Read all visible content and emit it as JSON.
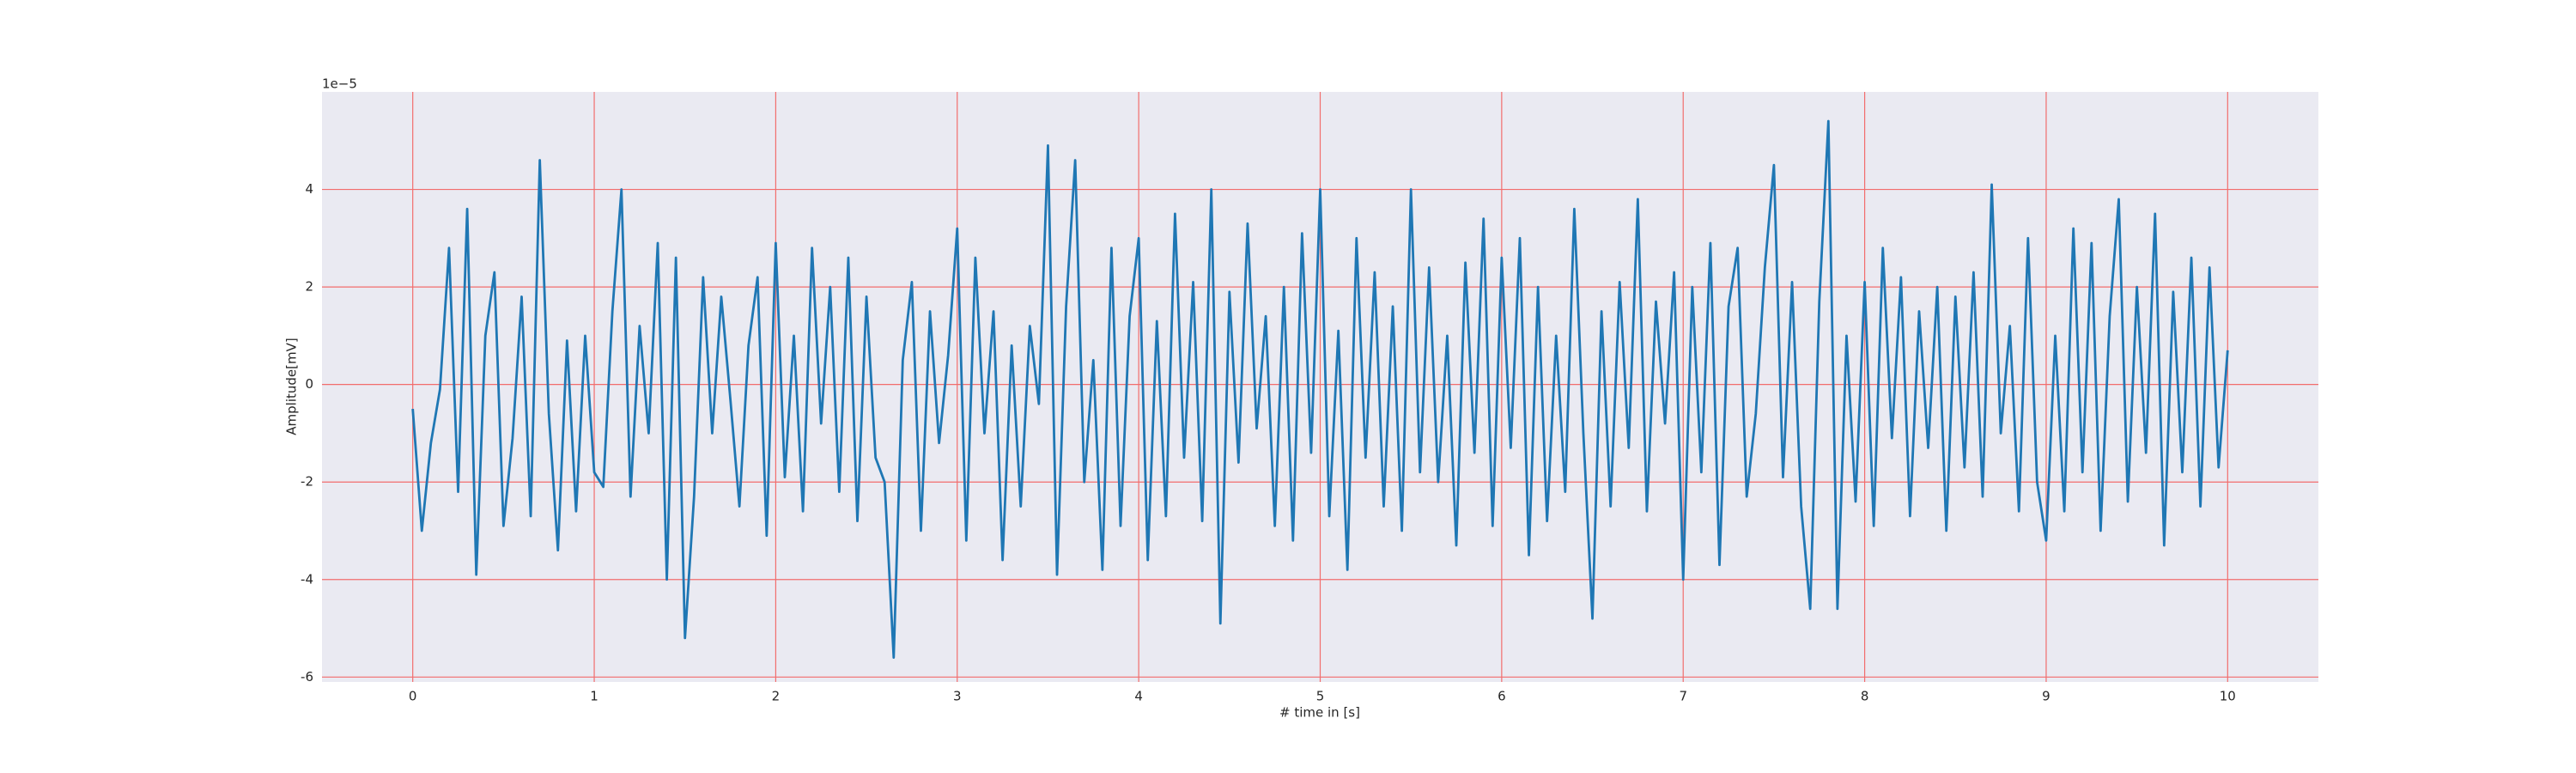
{
  "chart_data": {
    "type": "line",
    "xlabel": "# time in [s]",
    "ylabel": "Amplitude[mV]",
    "offset_text": "1e−5",
    "x": [
      0,
      0.05,
      0.1,
      0.15,
      0.2,
      0.25,
      0.3,
      0.35,
      0.4,
      0.45,
      0.5,
      0.55,
      0.6,
      0.65,
      0.7,
      0.75,
      0.8,
      0.85,
      0.9,
      0.95,
      1,
      1.05,
      1.1,
      1.15,
      1.2,
      1.25,
      1.3,
      1.35,
      1.4,
      1.45,
      1.5,
      1.55,
      1.6,
      1.65,
      1.7,
      1.75,
      1.8,
      1.85,
      1.9,
      1.95,
      2,
      2.05,
      2.1,
      2.15,
      2.2,
      2.25,
      2.3,
      2.35,
      2.4,
      2.45,
      2.5,
      2.55,
      2.6,
      2.65,
      2.7,
      2.75,
      2.8,
      2.85,
      2.9,
      2.95,
      3,
      3.05,
      3.1,
      3.15,
      3.2,
      3.25,
      3.3,
      3.35,
      3.4,
      3.45,
      3.5,
      3.55,
      3.6,
      3.65,
      3.7,
      3.75,
      3.8,
      3.85,
      3.9,
      3.95,
      4,
      4.05,
      4.1,
      4.15,
      4.2,
      4.25,
      4.3,
      4.35,
      4.4,
      4.45,
      4.5,
      4.55,
      4.6,
      4.65,
      4.7,
      4.75,
      4.8,
      4.85,
      4.9,
      4.95,
      5,
      5.05,
      5.1,
      5.15,
      5.2,
      5.25,
      5.3,
      5.35,
      5.4,
      5.45,
      5.5,
      5.55,
      5.6,
      5.65,
      5.7,
      5.75,
      5.8,
      5.85,
      5.9,
      5.95,
      6,
      6.05,
      6.1,
      6.15,
      6.2,
      6.25,
      6.3,
      6.35,
      6.4,
      6.45,
      6.5,
      6.55,
      6.6,
      6.65,
      6.7,
      6.75,
      6.8,
      6.85,
      6.9,
      6.95,
      7,
      7.05,
      7.1,
      7.15,
      7.2,
      7.25,
      7.3,
      7.35,
      7.4,
      7.45,
      7.5,
      7.55,
      7.6,
      7.65,
      7.7,
      7.75,
      7.8,
      7.85,
      7.9,
      7.95,
      8,
      8.05,
      8.1,
      8.15,
      8.2,
      8.25,
      8.3,
      8.35,
      8.4,
      8.45,
      8.5,
      8.55,
      8.6,
      8.65,
      8.7,
      8.75,
      8.8,
      8.85,
      8.9,
      8.95,
      9,
      9.05,
      9.1,
      9.15,
      9.2,
      9.25,
      9.3,
      9.35,
      9.4,
      9.45,
      9.5,
      9.55,
      9.6,
      9.65,
      9.7,
      9.75,
      9.8,
      9.85,
      9.9,
      9.95,
      10
    ],
    "values": [
      -0.5,
      -3.0,
      -1.2,
      -0.1,
      2.8,
      -2.2,
      3.6,
      -3.9,
      1.0,
      2.3,
      -2.9,
      -1.1,
      1.8,
      -2.7,
      4.6,
      -0.6,
      -3.4,
      0.9,
      -2.6,
      1.0,
      -1.8,
      -2.1,
      1.5,
      4.0,
      -2.3,
      1.2,
      -1.0,
      2.9,
      -4.0,
      2.6,
      -5.2,
      -2.3,
      2.2,
      -1.0,
      1.8,
      -0.3,
      -2.5,
      0.8,
      2.2,
      -3.1,
      2.9,
      -1.9,
      1.0,
      -2.6,
      2.8,
      -0.8,
      2.0,
      -2.2,
      2.6,
      -2.8,
      1.8,
      -1.5,
      -2.0,
      -5.6,
      0.5,
      2.1,
      -3.0,
      1.5,
      -1.2,
      0.6,
      3.2,
      -3.2,
      2.6,
      -1.0,
      1.5,
      -3.6,
      0.8,
      -2.5,
      1.2,
      -0.4,
      4.9,
      -3.9,
      1.6,
      4.6,
      -2.0,
      0.5,
      -3.8,
      2.8,
      -2.9,
      1.4,
      3.0,
      -3.6,
      1.3,
      -2.7,
      3.5,
      -1.5,
      2.1,
      -2.8,
      4.0,
      -4.9,
      1.9,
      -1.6,
      3.3,
      -0.9,
      1.4,
      -2.9,
      2.0,
      -3.2,
      3.1,
      -1.4,
      4.0,
      -2.7,
      1.1,
      -3.8,
      3.0,
      -1.5,
      2.3,
      -2.5,
      1.6,
      -3.0,
      4.0,
      -1.8,
      2.4,
      -2.0,
      1.0,
      -3.3,
      2.5,
      -1.4,
      3.4,
      -2.9,
      2.6,
      -1.3,
      3.0,
      -3.5,
      2.0,
      -2.8,
      1.0,
      -2.2,
      3.6,
      -1.0,
      -4.8,
      1.5,
      -2.5,
      2.1,
      -1.3,
      3.8,
      -2.6,
      1.7,
      -0.8,
      2.3,
      -4.0,
      2.0,
      -1.8,
      2.9,
      -3.7,
      1.6,
      2.8,
      -2.3,
      -0.6,
      2.4,
      4.5,
      -1.9,
      2.1,
      -2.5,
      -4.6,
      1.7,
      5.4,
      -4.6,
      1.0,
      -2.4,
      2.1,
      -2.9,
      2.8,
      -1.1,
      2.2,
      -2.7,
      1.5,
      -1.3,
      2.0,
      -3.0,
      1.8,
      -1.7,
      2.3,
      -2.3,
      4.1,
      -1.0,
      1.2,
      -2.6,
      3.0,
      -2.0,
      -3.2,
      1.0,
      -2.6,
      3.2,
      -1.8,
      2.9,
      -3.0,
      1.4,
      3.8,
      -2.4,
      2.0,
      -1.4,
      3.5,
      -3.3,
      1.9,
      -1.8,
      2.6,
      -2.5,
      2.4,
      -1.7,
      0.7
    ],
    "color": "#1f77b4",
    "xlim": [
      -0.5,
      10.5
    ],
    "xticks": [
      0,
      1,
      2,
      3,
      4,
      5,
      6,
      7,
      8,
      9,
      10
    ],
    "ylim": [
      -6.1,
      6.0
    ],
    "yticks": [
      -6,
      -4,
      -2,
      0,
      2,
      4
    ],
    "grid": true,
    "grid_color": "#f26d6d",
    "background": "#eaeaf2"
  }
}
